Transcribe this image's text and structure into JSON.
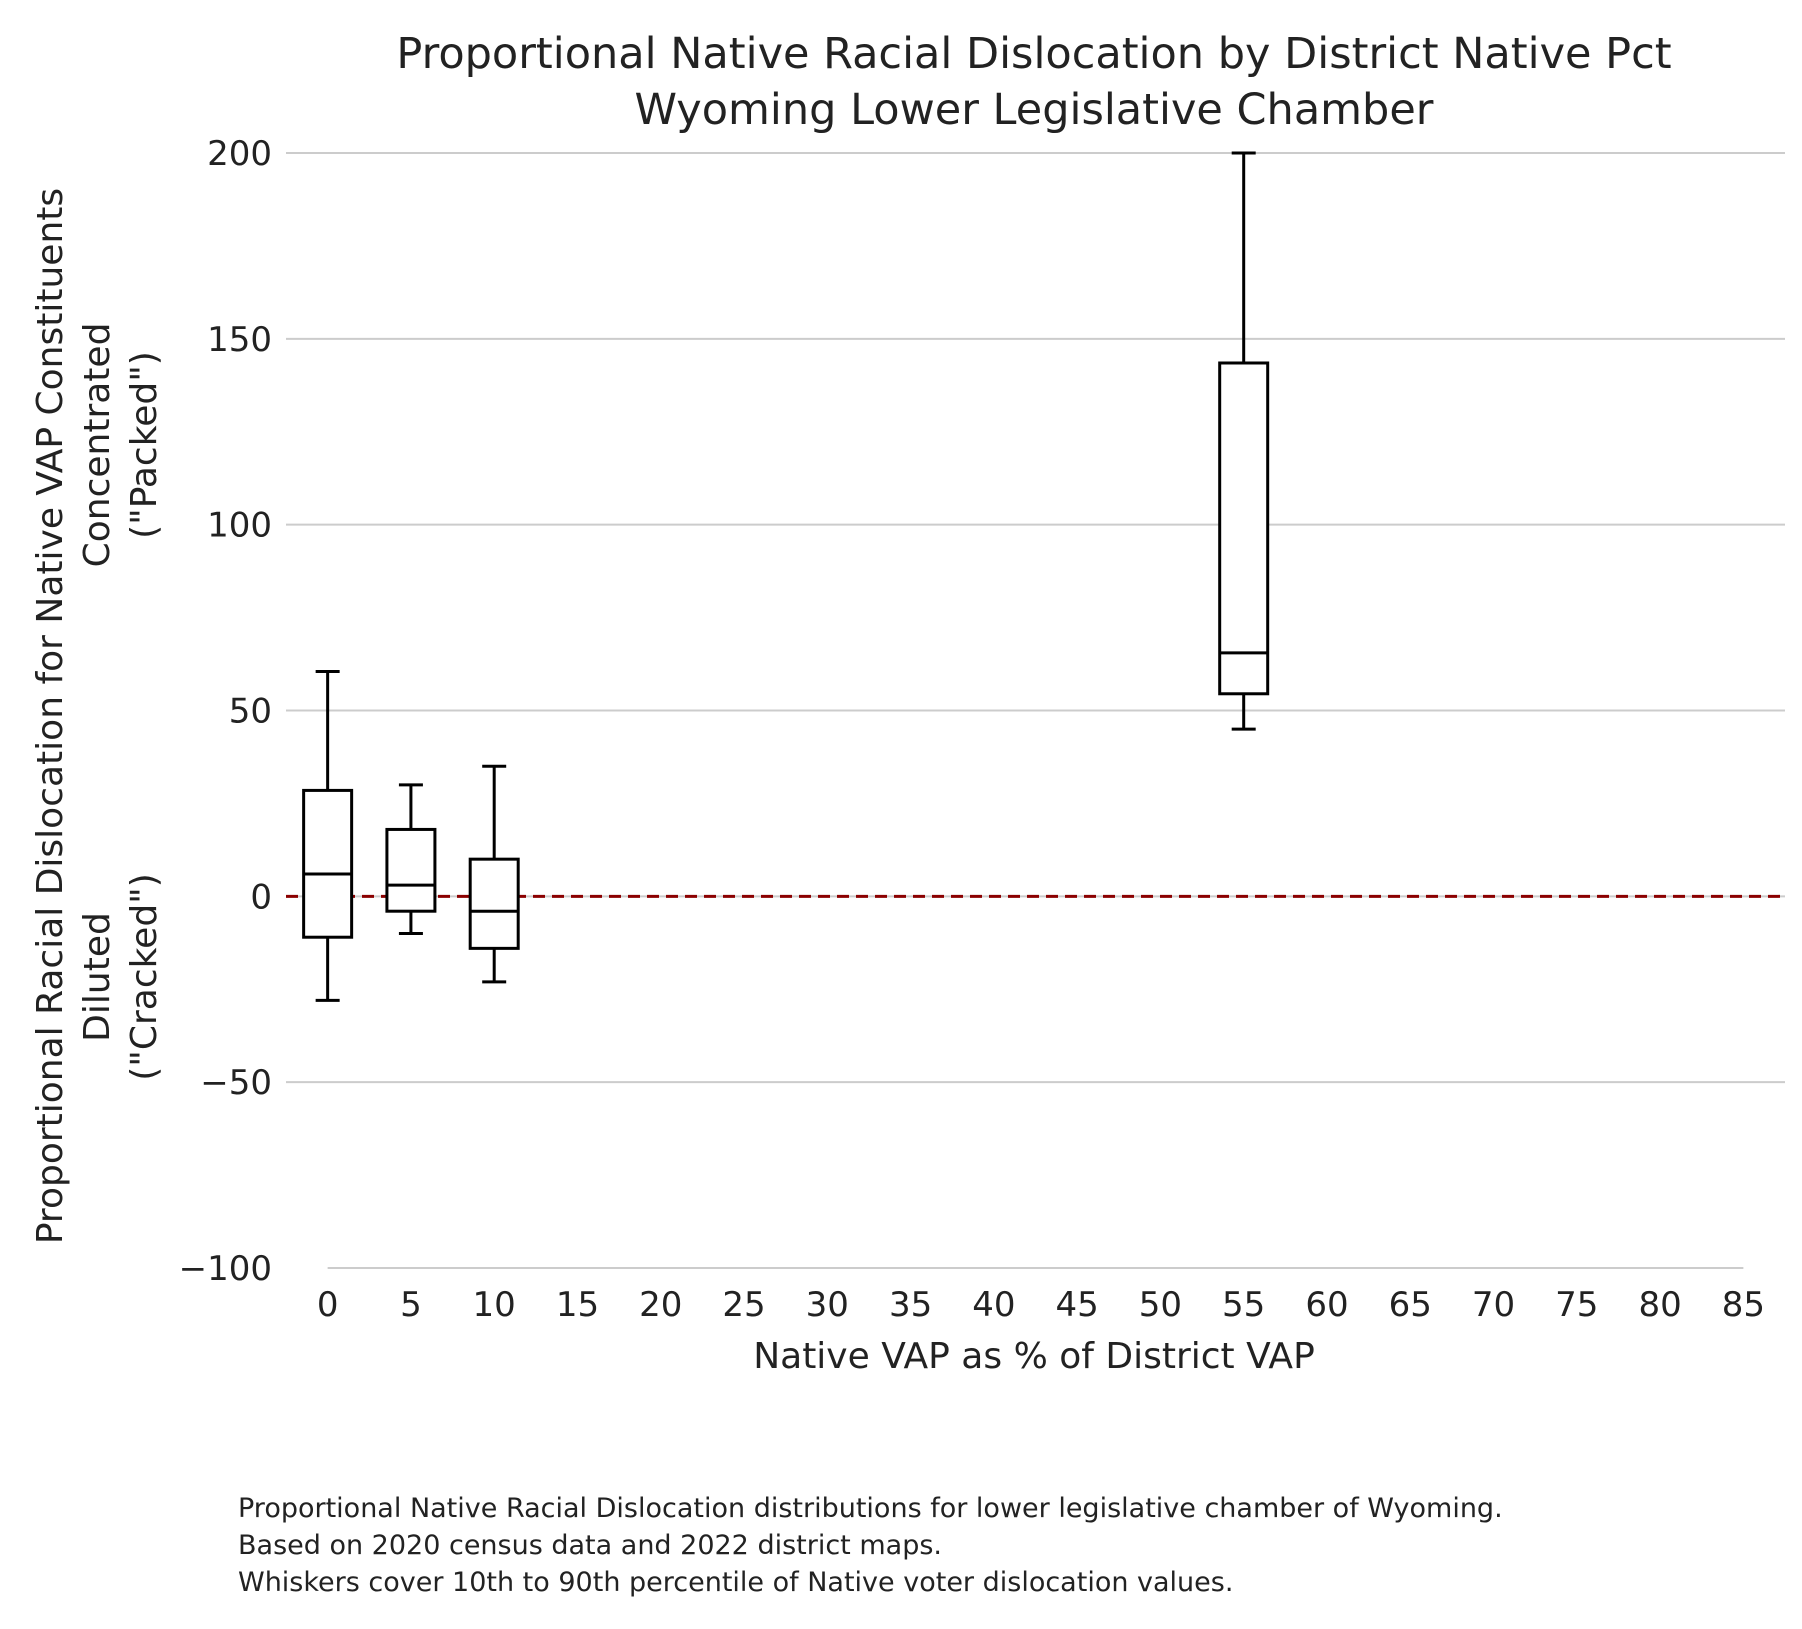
{
  "chart_data": {
    "type": "box",
    "title_lines": [
      "Proportional Native Racial Dislocation by District Native Pct",
      "Wyoming Lower Legislative Chamber"
    ],
    "xlabel": "Native VAP as % of District VAP",
    "ylabel_lines": [
      "Proportional Racial Dislocation for Native VAP Constituents",
      "Concentrated",
      "(\"Packed\")",
      "Diluted",
      "(\"Cracked\")"
    ],
    "x_ticks": [
      0,
      5,
      10,
      15,
      20,
      25,
      30,
      35,
      40,
      45,
      50,
      55,
      60,
      65,
      70,
      75,
      80,
      85
    ],
    "y_ticks": [
      -100,
      -50,
      0,
      50,
      100,
      150,
      200
    ],
    "ylim": [
      -100,
      200
    ],
    "xlim": [
      -2.5,
      87.5
    ],
    "grid": "horizontal",
    "reference_line": {
      "y": 0,
      "style": "dashed",
      "color": "#8b0000"
    },
    "boxes": [
      {
        "x": 0,
        "whisker_low": -28,
        "q1": -11,
        "median": 6,
        "q3": 28.5,
        "whisker_high": 60.5
      },
      {
        "x": 5,
        "whisker_low": -10,
        "q1": -4,
        "median": 3,
        "q3": 18,
        "whisker_high": 30
      },
      {
        "x": 10,
        "whisker_low": -23,
        "q1": -14,
        "median": -4,
        "q3": 10,
        "whisker_high": 35
      },
      {
        "x": 55,
        "whisker_low": 45,
        "q1": 54.5,
        "median": 65.5,
        "q3": 143.5,
        "whisker_high": 200
      }
    ],
    "colors": {
      "box": "#000000",
      "grid": "#cccccc",
      "reference": "#8b0000"
    }
  },
  "caption": [
    "Proportional Native Racial Dislocation distributions for lower legislative chamber of Wyoming.",
    "Based on 2020 census data and 2022 district maps.",
    "Whiskers cover 10th to 90th percentile of Native voter dislocation values."
  ]
}
